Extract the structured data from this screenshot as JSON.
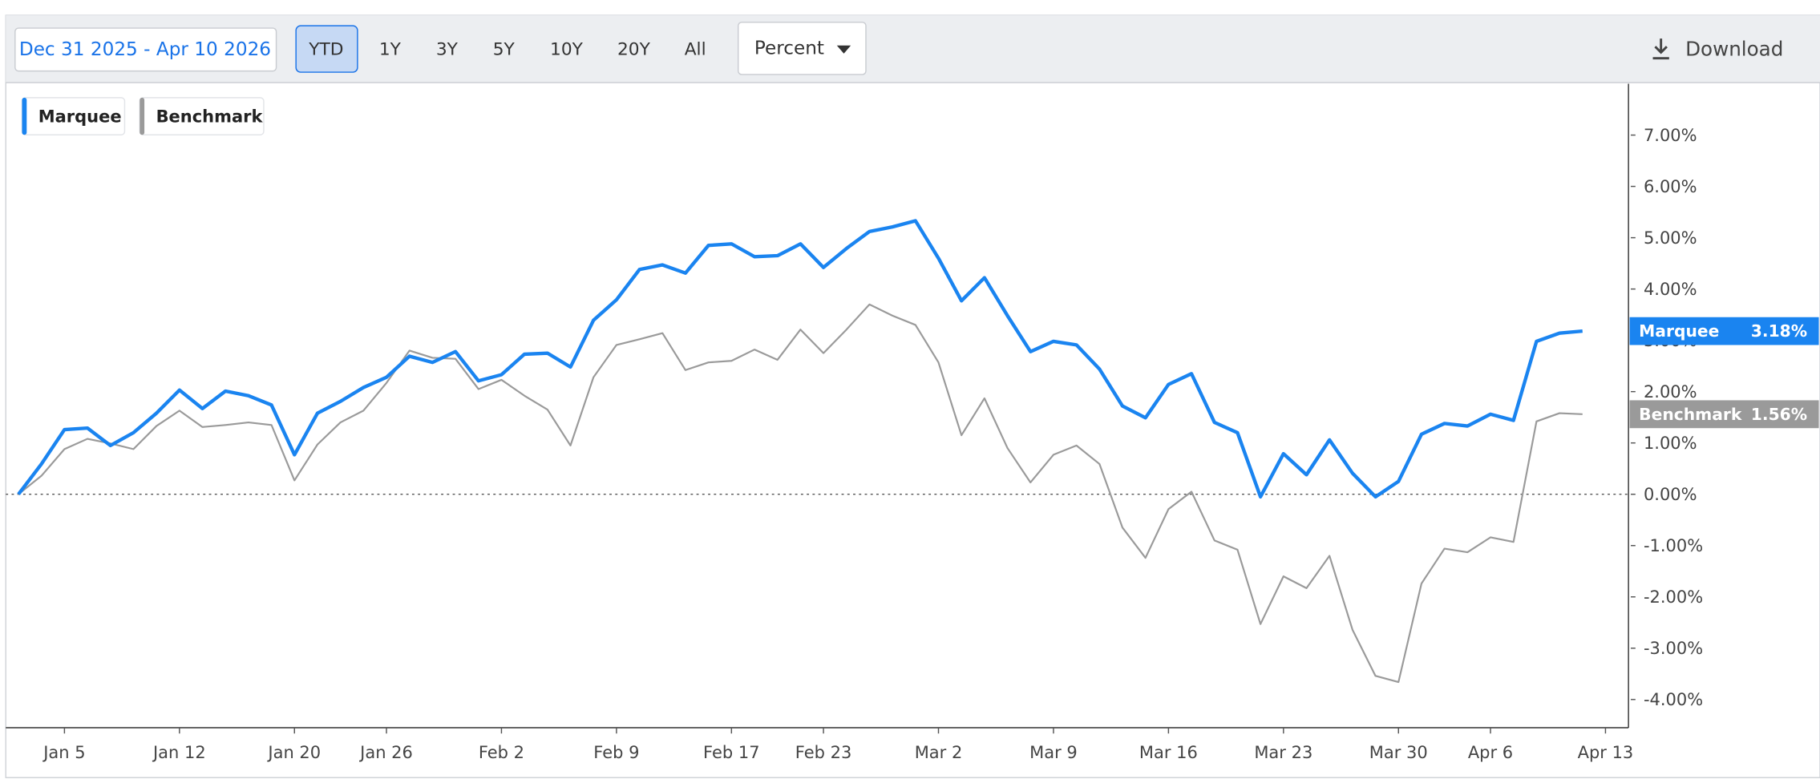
{
  "toolbar": {
    "date_range": "Dec 31 2025 - Apr 10 2026",
    "periods": [
      "YTD",
      "1Y",
      "3Y",
      "5Y",
      "10Y",
      "20Y",
      "All"
    ],
    "selected_period": 0,
    "unit": "Percent",
    "download": "Download"
  },
  "chart_data": {
    "type": "line",
    "x": [
      0,
      1,
      2,
      3,
      4,
      5,
      6,
      7,
      8,
      9,
      10,
      11,
      12,
      13,
      14,
      15,
      16,
      17,
      18,
      19,
      20,
      21,
      22,
      23,
      24,
      25,
      26,
      27,
      28,
      29,
      30,
      31,
      32,
      33,
      34,
      35,
      36,
      37,
      38,
      39,
      40,
      41,
      42,
      43,
      44,
      45,
      46,
      47,
      48,
      49,
      50,
      51,
      52,
      53,
      54,
      55,
      56,
      57,
      58,
      59,
      60,
      61,
      62,
      63,
      64,
      65,
      66,
      67,
      68
    ],
    "xlim": [
      -0.55,
      70
    ],
    "xticks": [
      {
        "value": 2,
        "label": "Jan 5"
      },
      {
        "value": 7,
        "label": "Jan 12"
      },
      {
        "value": 12,
        "label": "Jan 20"
      },
      {
        "value": 16,
        "label": "Jan 26"
      },
      {
        "value": 21,
        "label": "Feb 2"
      },
      {
        "value": 26,
        "label": "Feb 9"
      },
      {
        "value": 31,
        "label": "Feb 17"
      },
      {
        "value": 35,
        "label": "Feb 23"
      },
      {
        "value": 40,
        "label": "Mar 2"
      },
      {
        "value": 45,
        "label": "Mar 9"
      },
      {
        "value": 50,
        "label": "Mar 16"
      },
      {
        "value": 55,
        "label": "Mar 23"
      },
      {
        "value": 60,
        "label": "Mar 30"
      },
      {
        "value": 64,
        "label": "Apr 6"
      },
      {
        "value": 69,
        "label": "Apr 13"
      }
    ],
    "ylim": [
      -4.55,
      8
    ],
    "yticks": [
      {
        "value": -4,
        "label": "-4.00%"
      },
      {
        "value": -3,
        "label": "-3.00%"
      },
      {
        "value": -2,
        "label": "-2.00%"
      },
      {
        "value": -1,
        "label": "-1.00%"
      },
      {
        "value": 0,
        "label": "0.00%"
      },
      {
        "value": 1,
        "label": "1.00%"
      },
      {
        "value": 2,
        "label": "2.00%"
      },
      {
        "value": 3,
        "label": "3.00%"
      },
      {
        "value": 4,
        "label": "4.00%"
      },
      {
        "value": 5,
        "label": "5.00%"
      },
      {
        "value": 6,
        "label": "6.00%"
      },
      {
        "value": 7,
        "label": "7.00%"
      }
    ],
    "y_axis_side": "right",
    "series": [
      {
        "name": "Marquee",
        "color": "#1a84f0",
        "end_label": "3.18%",
        "values": [
          0,
          0.59,
          1.26,
          1.29,
          0.95,
          1.2,
          1.58,
          2.03,
          1.67,
          2.01,
          1.92,
          1.74,
          0.77,
          1.58,
          1.81,
          2.08,
          2.28,
          2.69,
          2.57,
          2.78,
          2.21,
          2.33,
          2.73,
          2.75,
          2.48,
          3.39,
          3.79,
          4.38,
          4.47,
          4.31,
          4.85,
          4.88,
          4.63,
          4.65,
          4.88,
          4.42,
          4.79,
          5.12,
          5.21,
          5.33,
          4.6,
          3.77,
          4.22,
          3.48,
          2.78,
          2.98,
          2.91,
          2.44,
          1.72,
          1.49,
          2.14,
          2.35,
          1.4,
          1.2,
          -0.05,
          0.79,
          0.38,
          1.06,
          0.41,
          -0.05,
          0.25,
          1.17,
          1.38,
          1.33,
          1.56,
          1.44,
          2.98,
          3.14,
          3.18
        ]
      },
      {
        "name": "Benchmark",
        "color": "#9a9a9a",
        "end_label": "1.56%",
        "values": [
          0,
          0.36,
          0.88,
          1.08,
          0.99,
          0.88,
          1.33,
          1.63,
          1.31,
          1.35,
          1.4,
          1.35,
          0.27,
          0.97,
          1.4,
          1.63,
          2.17,
          2.8,
          2.66,
          2.64,
          2.05,
          2.23,
          1.92,
          1.65,
          0.95,
          2.28,
          2.91,
          3.02,
          3.14,
          2.42,
          2.57,
          2.6,
          2.82,
          2.62,
          3.21,
          2.75,
          3.21,
          3.7,
          3.48,
          3.3,
          2.57,
          1.15,
          1.87,
          0.9,
          0.23,
          0.77,
          0.95,
          0.59,
          -0.65,
          -1.24,
          -0.29,
          0.05,
          -0.9,
          -1.08,
          -2.53,
          -1.6,
          -1.83,
          -1.2,
          -2.64,
          -3.54,
          -3.66,
          -1.74,
          -1.06,
          -1.13,
          -0.84,
          -0.93,
          1.42,
          1.58,
          1.56
        ]
      }
    ]
  }
}
